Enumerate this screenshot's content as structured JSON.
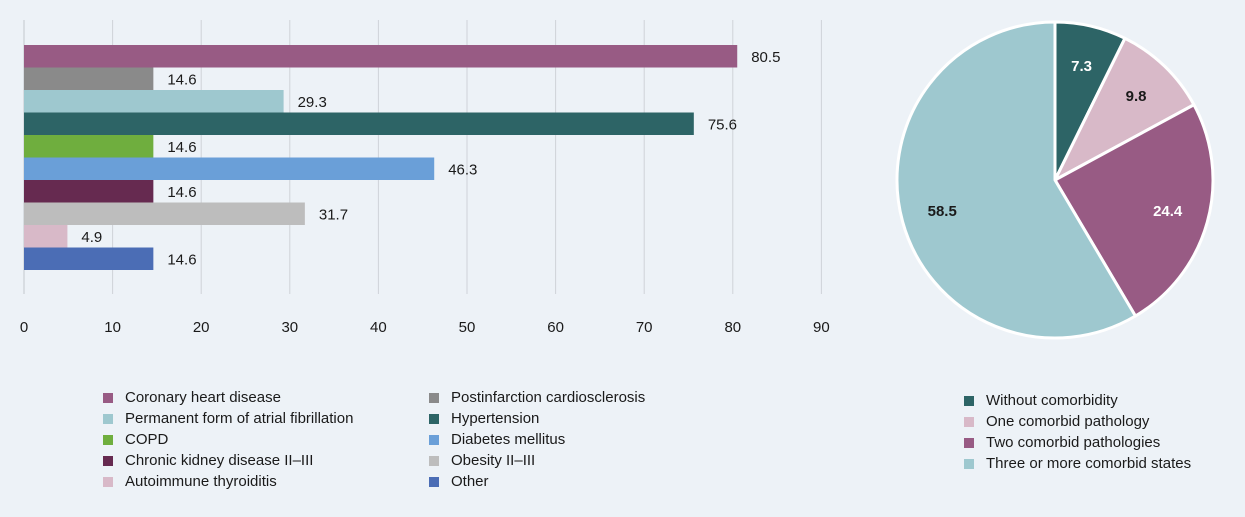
{
  "chart_data": [
    {
      "type": "bar",
      "orientation": "horizontal",
      "categories": [
        "Coronary heart disease",
        "Postinfarction cardiosclerosis",
        "Permanent form of atrial fibrillation",
        "Hypertension",
        "COPD",
        "Diabetes mellitus",
        "Chronic kidney disease II–III",
        "Obesity II–III",
        "Autoimmune thyroiditis",
        "Other"
      ],
      "values": [
        80.5,
        14.6,
        29.3,
        75.6,
        14.6,
        46.3,
        14.6,
        31.7,
        4.9,
        14.6
      ],
      "value_labels": [
        "80.5",
        "14.6",
        "29.3",
        "75.6",
        "14.6",
        "46.3",
        "14.6",
        "31.7",
        "4.9",
        "14.6"
      ],
      "colors": [
        "#985b84",
        "#8a8a8a",
        "#9ec8cf",
        "#2d6466",
        "#6fae3e",
        "#6a9fd8",
        "#662a50",
        "#bdbdbd",
        "#d8b9c8",
        "#4b6db5"
      ],
      "xlim": [
        0,
        90
      ],
      "xticks": [
        "0",
        "10",
        "20",
        "30",
        "40",
        "50",
        "60",
        "70",
        "80",
        "90"
      ],
      "grid": true,
      "legend_placement": "bottom",
      "title": "",
      "xlabel": "",
      "ylabel": ""
    },
    {
      "type": "pie",
      "categories": [
        "Without comorbidity",
        "One comorbid pathology",
        "Two comorbid pathologies",
        "Three or more comorbid states"
      ],
      "values": [
        7.3,
        9.8,
        24.4,
        58.5
      ],
      "value_labels": [
        "7.3",
        "9.8",
        "24.4",
        "58.5"
      ],
      "colors": [
        "#2d6466",
        "#d8b9c8",
        "#985b84",
        "#9ec8cf"
      ],
      "label_colors": [
        "#ffffff",
        "#1a1a1a",
        "#ffffff",
        "#1a1a1a"
      ],
      "legend_placement": "bottom-right",
      "title": ""
    }
  ]
}
